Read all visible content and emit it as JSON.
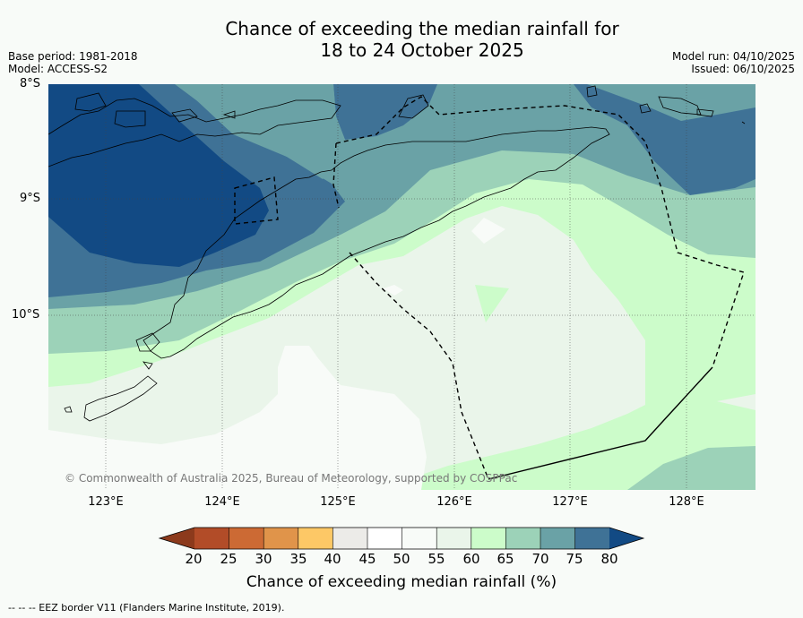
{
  "title_line1": "Chance of exceeding the median rainfall for",
  "title_line2": "18 to 24 October 2025",
  "base_period": "Base period: 1981-2018",
  "model": "Model: ACCESS-S2",
  "model_run": "Model run: 04/10/2025",
  "issued": "Issued: 06/10/2025",
  "lat_labels": [
    "8°S",
    "9°S",
    "10°S"
  ],
  "lon_labels": [
    "123°E",
    "124°E",
    "125°E",
    "126°E",
    "127°E",
    "128°E"
  ],
  "copyright": "© Commonwealth of Australia 2025, Bureau of Meteorology, supported by COSPPac",
  "colorbar": {
    "title": "Chance of exceeding median rainfall (%)",
    "ticks": [
      "20",
      "25",
      "30",
      "35",
      "40",
      "45",
      "50",
      "55",
      "60",
      "65",
      "70",
      "75",
      "80"
    ],
    "colors": {
      "below_20": "#8c3a1c",
      "c20_25": "#b24c28",
      "c25_30": "#cc6a34",
      "c30_35": "#e0944a",
      "c35_40": "#fdc866",
      "c40_45": "#ecebe8",
      "c45_50": "#ffffff",
      "c50_55": "#f8fbf8",
      "c55_60": "#eaf5ea",
      "c60_65": "#ccfcca",
      "c65_70": "#9cd2b8",
      "c70_75": "#6aa2a6",
      "c75_80": "#3f7296",
      "above_80": "#124a84"
    }
  },
  "footer": "--  --  -- EEZ border V11 (Flanders Marine Institute, 2019)."
}
